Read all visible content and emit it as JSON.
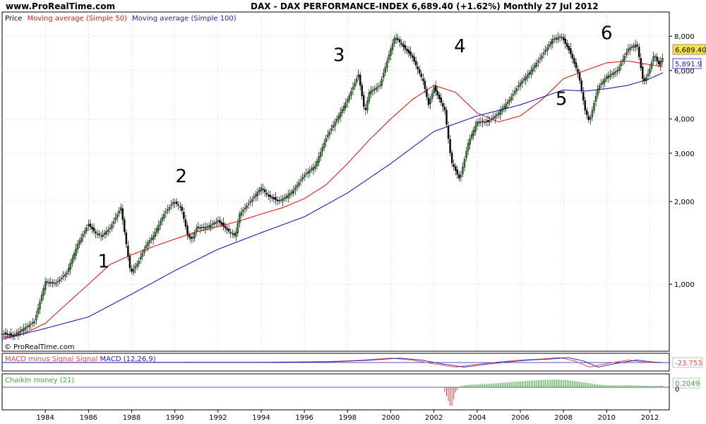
{
  "header": {
    "site": "www.ProRealTime.com",
    "title": "DAX - DAX PERFORMANCE-INDEX   6,689.40 (+1.62%)   Monthly  27 Jul 2012"
  },
  "legend": {
    "price": "Price",
    "ma50": "Moving average (Simple 50)",
    "ma100": "Moving average (Simple 100)"
  },
  "watermark": "© ProRealTime.com",
  "colors": {
    "price": "#000000",
    "candle_up": "#228b22",
    "ma50": "#e41a1a",
    "ma100": "#1c1cb4",
    "macd_text": "#e84a4a",
    "macd_signal": "#1c1cb4",
    "chaikin": "#3fae3f",
    "last_price_bg": "#ffe24a",
    "grid": "#d0d0d0"
  },
  "labels": {
    "last_price": "6,689.40",
    "last_ma": "5,891.9",
    "macd_value": "-23.753",
    "chaikin_value": "0.2049",
    "chaikin_zero": "0"
  },
  "macd_panel": {
    "title_red": "MACD minus Signal Signal",
    "title_blue": "MACD (12,26,9)"
  },
  "chaikin_panel": {
    "title": "Chaikin money (21)"
  },
  "chart_data": {
    "type": "line",
    "title": "DAX - DAX PERFORMANCE-INDEX",
    "scale": "log",
    "ylim": [
      570,
      9800
    ],
    "xlim": [
      1982.0,
      2012.9
    ],
    "y_ticks": [
      "8,000",
      "6,000",
      "4,000",
      "3,000",
      "2,000",
      "1,000"
    ],
    "y_tick_values": [
      8000,
      6000,
      4000,
      3000,
      2000,
      1000
    ],
    "x_ticks": [
      "1984",
      "1986",
      "1988",
      "1990",
      "1992",
      "1994",
      "1996",
      "1998",
      "2000",
      "2002",
      "2004",
      "2006",
      "2008",
      "2010",
      "2012"
    ],
    "x_tick_values": [
      1984,
      1986,
      1988,
      1990,
      1992,
      1994,
      1996,
      1998,
      2000,
      2002,
      2004,
      2006,
      2008,
      2010,
      2012
    ],
    "annotations": [
      {
        "text": "1",
        "x": 1986.7,
        "y": 1150
      },
      {
        "text": "2",
        "x": 1990.3,
        "y": 2350
      },
      {
        "text": "3",
        "x": 1997.6,
        "y": 6500
      },
      {
        "text": "4",
        "x": 2003.2,
        "y": 7000
      },
      {
        "text": "5",
        "x": 2007.9,
        "y": 4500
      },
      {
        "text": "6",
        "x": 2010.0,
        "y": 7800
      }
    ],
    "series": [
      {
        "name": "Price",
        "x": [
          1982.0,
          1982.5,
          1983.0,
          1983.5,
          1984.0,
          1984.5,
          1985.0,
          1985.5,
          1986.0,
          1986.3,
          1986.6,
          1987.0,
          1987.5,
          1987.75,
          1987.95,
          1988.3,
          1988.7,
          1989.0,
          1989.5,
          1989.95,
          1990.3,
          1990.6,
          1990.8,
          1991.0,
          1991.5,
          1992.0,
          1992.4,
          1992.8,
          1993.0,
          1993.5,
          1994.0,
          1994.3,
          1994.8,
          1995.2,
          1995.5,
          1996.0,
          1996.5,
          1997.0,
          1997.5,
          1997.8,
          1998.0,
          1998.5,
          1998.8,
          1999.0,
          1999.5,
          2000.0,
          2000.2,
          2000.6,
          2001.0,
          2001.5,
          2001.75,
          2002.0,
          2002.5,
          2002.8,
          2003.2,
          2003.6,
          2004.0,
          2004.5,
          2005.0,
          2005.5,
          2006.0,
          2006.5,
          2007.0,
          2007.5,
          2007.9,
          2008.3,
          2008.7,
          2009.0,
          2009.2,
          2009.6,
          2010.0,
          2010.5,
          2011.0,
          2011.4,
          2011.7,
          2011.95,
          2012.2,
          2012.4,
          2012.6
        ],
        "values": [
          660,
          650,
          690,
          730,
          1020,
          1010,
          1100,
          1400,
          1650,
          1540,
          1500,
          1600,
          1900,
          1400,
          1100,
          1200,
          1400,
          1500,
          1800,
          2000,
          1900,
          1500,
          1450,
          1600,
          1620,
          1700,
          1580,
          1500,
          1800,
          2000,
          2250,
          2100,
          2000,
          2100,
          2200,
          2500,
          2700,
          3400,
          4000,
          4400,
          4700,
          5800,
          4200,
          5000,
          5300,
          7200,
          8000,
          7300,
          6700,
          5500,
          4500,
          5200,
          4300,
          2800,
          2400,
          3300,
          3900,
          3900,
          4200,
          4700,
          5400,
          6000,
          6800,
          7800,
          8000,
          7000,
          5800,
          4300,
          3900,
          5200,
          5700,
          6000,
          7200,
          7500,
          5400,
          5900,
          6900,
          6300,
          6689
        ]
      },
      {
        "name": "Moving average (Simple 50)",
        "x": [
          1982.0,
          1983.0,
          1984.0,
          1985.0,
          1986.0,
          1987.0,
          1988.0,
          1989.0,
          1990.0,
          1991.0,
          1992.0,
          1993.0,
          1994.0,
          1995.0,
          1996.0,
          1997.0,
          1998.0,
          1999.0,
          2000.0,
          2001.0,
          2002.0,
          2003.0,
          2004.0,
          2005.0,
          2006.0,
          2007.0,
          2008.0,
          2009.0,
          2010.0,
          2011.0,
          2012.0,
          2012.6
        ],
        "values": [
          640,
          660,
          720,
          850,
          1000,
          1180,
          1280,
          1370,
          1460,
          1550,
          1620,
          1700,
          1800,
          1900,
          2050,
          2300,
          2750,
          3350,
          4000,
          4700,
          5300,
          5000,
          4200,
          3900,
          4100,
          4700,
          5600,
          6000,
          6400,
          6500,
          6300,
          6200
        ]
      },
      {
        "name": "Moving average (Simple 100)",
        "x": [
          1982.0,
          1984.0,
          1986.0,
          1988.0,
          1990.0,
          1992.0,
          1994.0,
          1996.0,
          1998.0,
          2000.0,
          2002.0,
          2004.0,
          2006.0,
          2008.0,
          2009.0,
          2010.0,
          2011.0,
          2012.0,
          2012.6
        ],
        "values": [
          630,
          690,
          760,
          920,
          1120,
          1340,
          1540,
          1760,
          2150,
          2750,
          3600,
          4100,
          4500,
          5100,
          5050,
          5150,
          5300,
          5600,
          5892
        ]
      }
    ],
    "macd": {
      "x": [
        1982.0,
        1986.0,
        1990.0,
        1994.0,
        1997.0,
        1998.5,
        2000.0,
        2001.0,
        2002.0,
        2003.0,
        2004.0,
        2005.0,
        2006.0,
        2007.0,
        2007.8,
        2008.5,
        2009.2,
        2010.0,
        2011.0,
        2011.8,
        2012.6
      ],
      "values": [
        0,
        10,
        25,
        35,
        120,
        300,
        620,
        350,
        -200,
        -650,
        -250,
        80,
        350,
        500,
        700,
        250,
        -650,
        -150,
        350,
        50,
        -24
      ]
    },
    "chaikin": {
      "x": [
        2002.0,
        2002.4,
        2002.8,
        2003.0,
        2003.3,
        2003.6,
        2004.0,
        2004.5,
        2005.0,
        2005.5,
        2006.0,
        2006.5,
        2007.0,
        2007.5,
        2008.0,
        2008.5,
        2009.0,
        2009.5,
        2010.0,
        2010.5,
        2011.0,
        2011.5,
        2012.0,
        2012.6
      ],
      "values": [
        0.02,
        0.05,
        -1.0,
        -0.25,
        0.18,
        0.3,
        0.35,
        0.4,
        0.5,
        0.6,
        0.7,
        0.78,
        0.85,
        0.9,
        0.88,
        0.75,
        0.55,
        0.35,
        0.25,
        0.2,
        0.25,
        0.2,
        0.15,
        0.2
      ]
    }
  }
}
